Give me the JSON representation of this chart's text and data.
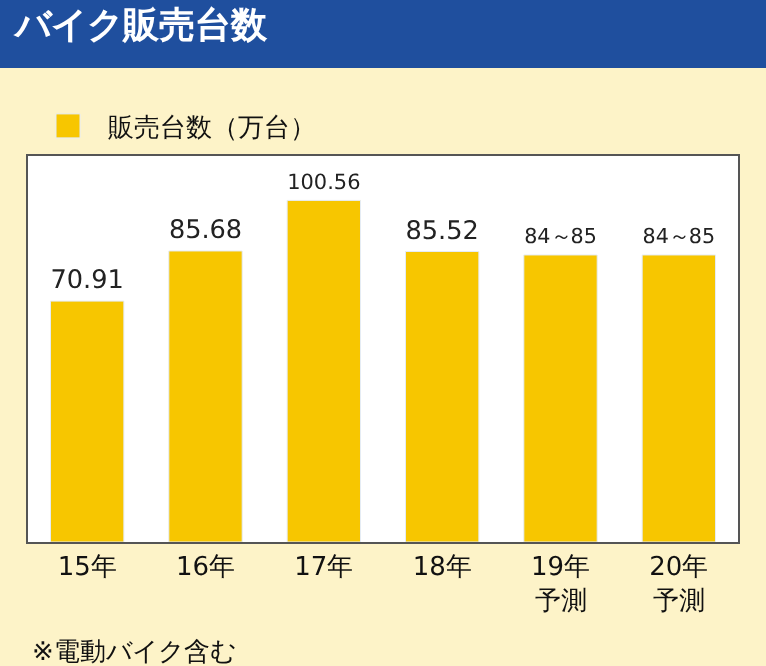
{
  "chart_data": {
    "type": "bar",
    "title": "バイク販売台数",
    "categories": [
      "15年",
      "16年",
      "17年",
      "18年",
      "19年予測",
      "20年予測"
    ],
    "series": [
      {
        "name": "販売台数（万台）",
        "color": "#f7c600",
        "values": [
          70.91,
          85.68,
          100.56,
          85.52,
          84.5,
          84.5
        ],
        "value_labels": [
          "70.91",
          "85.68",
          "100.56",
          "85.52",
          "84～85",
          "84～85"
        ]
      }
    ],
    "legend": "top left",
    "annotations": [
      "※電動バイク含む"
    ]
  }
}
